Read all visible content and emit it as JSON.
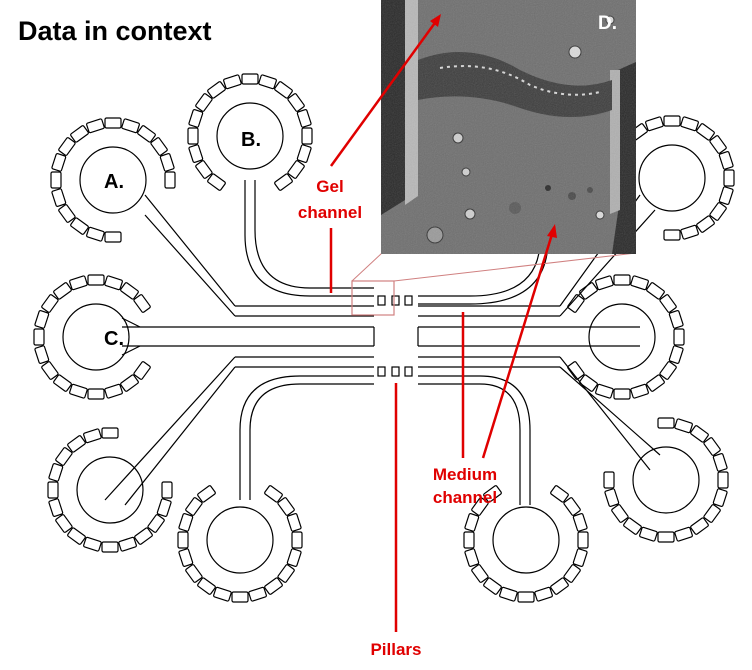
{
  "title": "Data in context",
  "ports": {
    "a": "A.",
    "b": "B.",
    "c": "C."
  },
  "micrograph": {
    "label": "D."
  },
  "callouts": {
    "gel_line1": "Gel",
    "gel_line2": "channel",
    "medium_line1": "Medium",
    "medium_line2": "channel",
    "pillars": "Pillars"
  },
  "colors": {
    "callout": "#e00000",
    "outline": "#000000",
    "micrograph_bg": "#6f6f6f",
    "zoom_box": "#d08080"
  }
}
